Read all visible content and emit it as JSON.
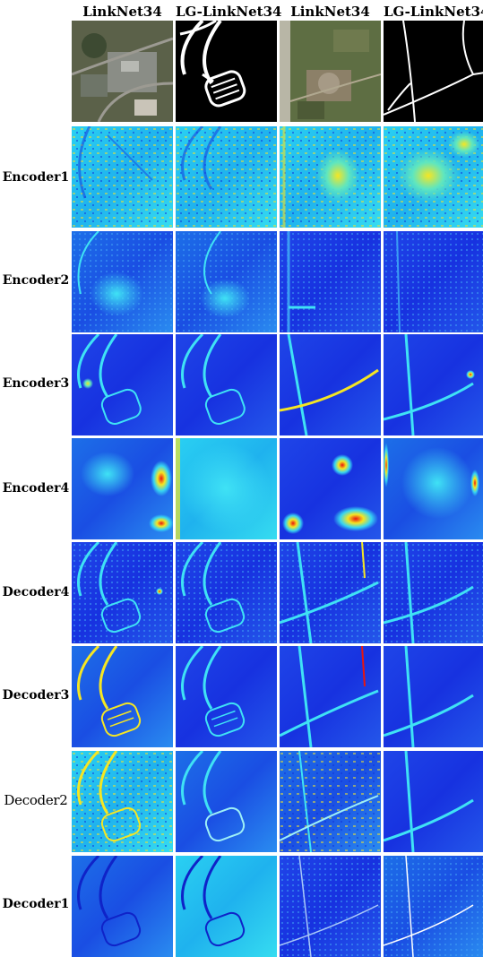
{
  "columns": [
    {
      "title": "LinkNet34"
    },
    {
      "title": "LG-LinkNet34"
    },
    {
      "title": "LinkNet34"
    },
    {
      "title": "LG-LinkNet34"
    }
  ],
  "rows": [
    {
      "label": "Encoder1"
    },
    {
      "label": "Encoder2"
    },
    {
      "label": "Encoder3"
    },
    {
      "label": "Encoder4"
    },
    {
      "label": "Decoder4"
    },
    {
      "label": "Decoder3"
    },
    {
      "label": "Decoder2"
    },
    {
      "label": "Decoder1"
    }
  ],
  "colors": {
    "heat_low": "#1a2fe0",
    "heat_mid": "#22c8f0",
    "heat_high": "#f5e623",
    "heat_peak": "#e8150f",
    "aerial_green": "#4a5a3a",
    "mask_bg": "#000000",
    "mask_line": "#ffffff"
  }
}
